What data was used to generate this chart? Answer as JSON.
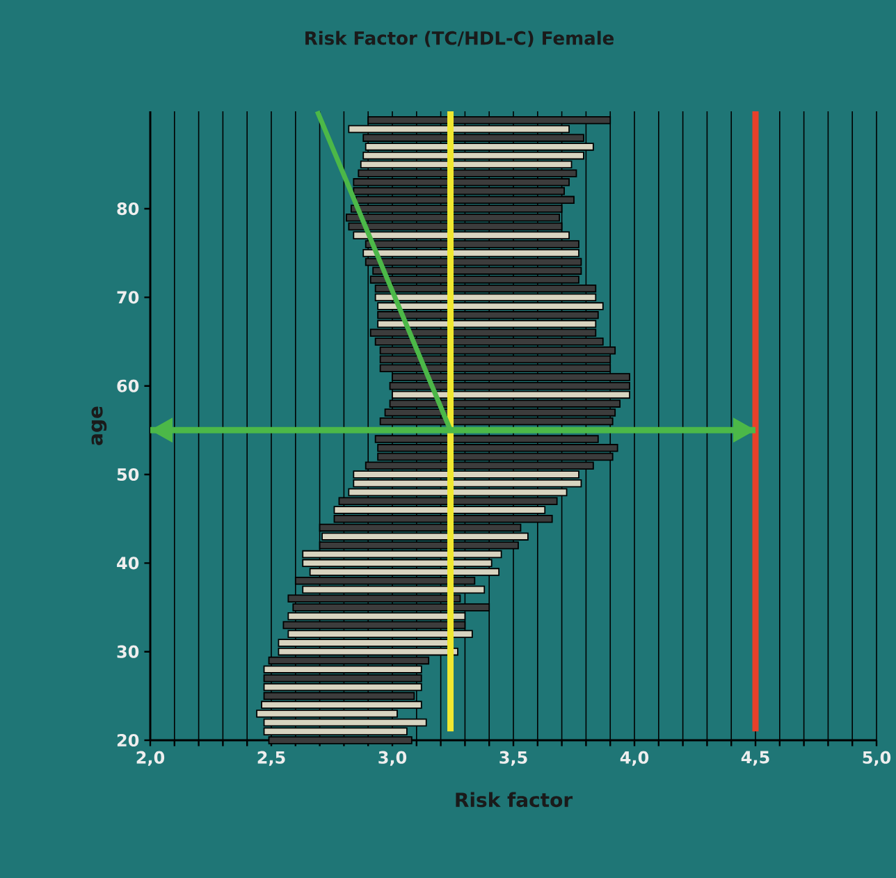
{
  "chart_data": {
    "type": "bar",
    "orientation": "horizontal",
    "title": "Risk Factor (TC/HDL-C) Female",
    "xlabel": "Risk factor",
    "ylabel": "age",
    "x": [
      20,
      21,
      22,
      23,
      24,
      25,
      26,
      27,
      28,
      29,
      30,
      31,
      32,
      33,
      34,
      35,
      36,
      37,
      38,
      39,
      40,
      41,
      42,
      43,
      44,
      45,
      46,
      47,
      48,
      49,
      50,
      51,
      52,
      53,
      54,
      55,
      56,
      57,
      58,
      59,
      60,
      61,
      62,
      63,
      64,
      65,
      66,
      67,
      68,
      69,
      70,
      71,
      72,
      73,
      74,
      75,
      76,
      77,
      78,
      79,
      80,
      81,
      82,
      83,
      84,
      85,
      86,
      87,
      88,
      89,
      90
    ],
    "base": [
      2.49,
      2.47,
      2.47,
      2.44,
      2.46,
      2.47,
      2.47,
      2.47,
      2.47,
      2.49,
      2.53,
      2.53,
      2.57,
      2.55,
      2.57,
      2.59,
      2.57,
      2.63,
      2.6,
      2.66,
      2.63,
      2.63,
      2.7,
      2.71,
      2.7,
      2.76,
      2.76,
      2.78,
      2.82,
      2.84,
      2.84,
      2.89,
      2.94,
      2.94,
      2.93,
      null,
      2.95,
      2.97,
      2.99,
      3.0,
      2.99,
      3.0,
      2.95,
      2.95,
      2.95,
      2.93,
      2.91,
      2.94,
      2.94,
      2.94,
      2.93,
      2.93,
      2.91,
      2.92,
      2.89,
      2.88,
      2.89,
      2.84,
      2.82,
      2.81,
      2.83,
      2.85,
      2.84,
      2.84,
      2.86,
      2.87,
      2.88,
      2.89,
      2.88,
      2.82,
      2.9
    ],
    "values": [
      0.59,
      0.59,
      0.67,
      0.58,
      0.66,
      0.62,
      0.65,
      0.65,
      0.65,
      0.66,
      0.74,
      0.7,
      0.76,
      0.75,
      0.73,
      0.81,
      0.71,
      0.75,
      0.74,
      0.78,
      0.78,
      0.82,
      0.82,
      0.85,
      0.83,
      0.9,
      0.87,
      0.9,
      0.9,
      0.94,
      0.93,
      0.94,
      0.97,
      0.99,
      0.92,
      null,
      0.96,
      0.95,
      0.95,
      0.98,
      0.99,
      0.98,
      0.95,
      0.95,
      0.97,
      0.94,
      0.93,
      0.9,
      0.91,
      0.93,
      0.91,
      0.91,
      0.86,
      0.86,
      0.89,
      0.89,
      0.88,
      0.89,
      0.88,
      0.88,
      0.87,
      0.9,
      0.87,
      0.89,
      0.9,
      0.87,
      0.91,
      0.94,
      0.91,
      0.91,
      1.0
    ],
    "colors": [
      "#3c3c3c",
      "#d8d4c0",
      "#d8d4c0",
      "#d8d4c0",
      "#d8d4c0",
      "#3c3c3c",
      "#d8d4c0",
      "#3c3c3c",
      "#d8d4c0",
      "#3c3c3c",
      "#d8d4c0",
      "#d8d4c0",
      "#d8d4c0",
      "#3c3c3c",
      "#d8d4c0",
      "#3c3c3c",
      "#3c3c3c",
      "#d8d4c0",
      "#3c3c3c",
      "#d8d4c0",
      "#d8d4c0",
      "#d8d4c0",
      "#3c3c3c",
      "#d8d4c0",
      "#3c3c3c",
      "#3c3c3c",
      "#d8d4c0",
      "#3c3c3c",
      "#d8d4c0",
      "#d8d4c0",
      "#d8d4c0",
      "#3c3c3c",
      "#3c3c3c",
      "#3c3c3c",
      "#3c3c3c",
      "#d8d4c0",
      "#3c3c3c",
      "#3c3c3c",
      "#3c3c3c",
      "#d8d4c0",
      "#3c3c3c",
      "#3c3c3c",
      "#3c3c3c",
      "#3c3c3c",
      "#3c3c3c",
      "#3c3c3c",
      "#3c3c3c",
      "#d8d4c0",
      "#3c3c3c",
      "#d8d4c0",
      "#d8d4c0",
      "#3c3c3c",
      "#3c3c3c",
      "#3c3c3c",
      "#3c3c3c",
      "#d8d4c0",
      "#3c3c3c",
      "#d8d4c0",
      "#3c3c3c",
      "#3c3c3c",
      "#3c3c3c",
      "#3c3c3c",
      "#3c3c3c",
      "#3c3c3c",
      "#3c3c3c",
      "#d8d4c0",
      "#d8d4c0",
      "#d8d4c0",
      "#3c3c3c",
      "#d8d4c0",
      "#3c3c3c"
    ],
    "series": [
      {
        "type": "line",
        "color": "#4cb848",
        "x": [
          55,
          91
        ],
        "values": [
          3.24,
          2.69
        ]
      }
    ],
    "xlim": [
      2.0,
      5.0
    ],
    "ylim": [
      20,
      91
    ],
    "xticks": [
      {
        "value": 2.0,
        "label": "2,0"
      },
      {
        "value": 2.1,
        "label": null
      },
      {
        "value": 2.2,
        "label": null
      },
      {
        "value": 2.3,
        "label": null
      },
      {
        "value": 2.4,
        "label": null
      },
      {
        "value": 2.5,
        "label": "2,5"
      },
      {
        "value": 2.6,
        "label": null
      },
      {
        "value": 2.7,
        "label": null
      },
      {
        "value": 2.8,
        "label": null
      },
      {
        "value": 2.9,
        "label": null
      },
      {
        "value": 3.0,
        "label": "3,0"
      },
      {
        "value": 3.1,
        "label": null
      },
      {
        "value": 3.2,
        "label": null
      },
      {
        "value": 3.3,
        "label": null
      },
      {
        "value": 3.4,
        "label": null
      },
      {
        "value": 3.5,
        "label": "3,5"
      },
      {
        "value": 3.6,
        "label": null
      },
      {
        "value": 3.7,
        "label": null
      },
      {
        "value": 3.8,
        "label": null
      },
      {
        "value": 3.9,
        "label": null
      },
      {
        "value": 4.0,
        "label": "4,0"
      },
      {
        "value": 4.1,
        "label": null
      },
      {
        "value": 4.2,
        "label": null
      },
      {
        "value": 4.3,
        "label": null
      },
      {
        "value": 4.4,
        "label": null
      },
      {
        "value": 4.5,
        "label": "4,5"
      },
      {
        "value": 4.6,
        "label": null
      },
      {
        "value": 4.7,
        "label": null
      },
      {
        "value": 4.8,
        "label": null
      },
      {
        "value": 4.9,
        "label": null
      },
      {
        "value": 5.0,
        "label": "5,0"
      }
    ],
    "yticks": [
      20,
      30,
      40,
      50,
      60,
      70,
      80
    ],
    "grid": "x",
    "ref_lines": [
      {
        "axis": "x",
        "value": 3.24,
        "color": "#f0e830"
      },
      {
        "axis": "x",
        "value": 4.5,
        "color": "#e8402a"
      },
      {
        "axis": "y",
        "value": 55,
        "color": "#4cb848"
      }
    ]
  }
}
